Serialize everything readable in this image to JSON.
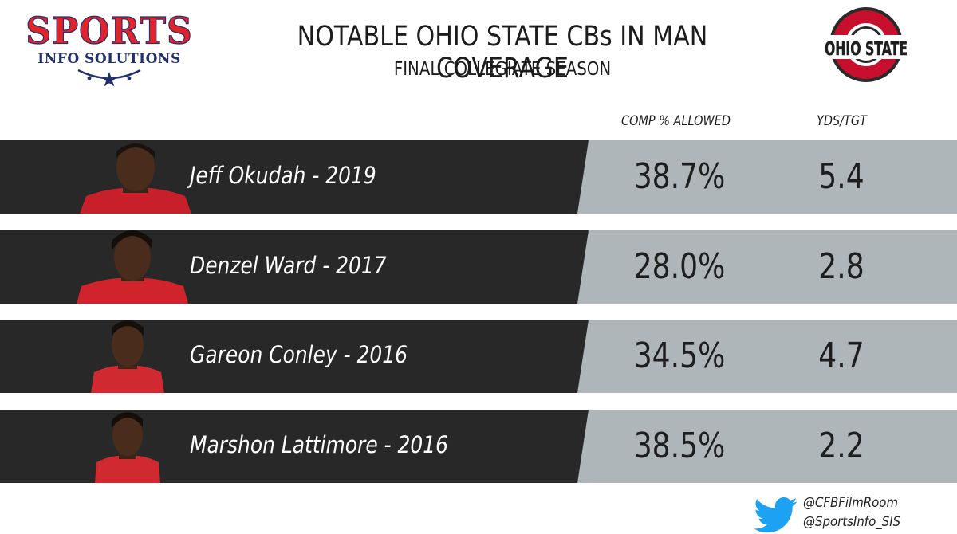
{
  "header": {
    "logo_left": {
      "big": "SPORTS",
      "small": "INFO SOLUTIONS"
    },
    "title": "NOTABLE OHIO STATE CBs IN MAN COVERAGE",
    "subtitle": "FINAL COLLEGIATE SEASON",
    "logo_right": {
      "text": "OHIO STATE",
      "color": "#c8102e"
    }
  },
  "columns": {
    "comp": "COMP % ALLOWED",
    "ypt": "YDS/TGT"
  },
  "rows": [
    {
      "name": "Jeff Okudah - 2019",
      "comp": "38.7%",
      "ypt": "5.4"
    },
    {
      "name": "Denzel Ward - 2017",
      "comp": "28.0%",
      "ypt": "2.8"
    },
    {
      "name": "Gareon Conley - 2016",
      "comp": "34.5%",
      "ypt": "4.7"
    },
    {
      "name": "Marshon Lattimore - 2016",
      "comp": "38.5%",
      "ypt": "2.2"
    }
  ],
  "footer": {
    "icon": "twitter-bird-icon",
    "handles": [
      "@CFBFilmRoom",
      "@SportsInfo_SIS"
    ]
  },
  "colors": {
    "row_dark": "#282828",
    "row_light": "#afb6ba",
    "osu_red": "#c8102e",
    "twitter_blue": "#1da1f2"
  },
  "chart_data": {
    "type": "table",
    "title": "NOTABLE OHIO STATE CBs IN MAN COVERAGE",
    "subtitle": "FINAL COLLEGIATE SEASON",
    "columns": [
      "COMP % ALLOWED",
      "YDS/TGT"
    ],
    "categories": [
      "Jeff Okudah - 2019",
      "Denzel Ward - 2017",
      "Gareon Conley - 2016",
      "Marshon Lattimore - 2016"
    ],
    "series": [
      {
        "name": "COMP % ALLOWED",
        "values": [
          38.7,
          28.0,
          34.5,
          38.5
        ]
      },
      {
        "name": "YDS/TGT",
        "values": [
          5.4,
          2.8,
          4.7,
          2.2
        ]
      }
    ]
  }
}
